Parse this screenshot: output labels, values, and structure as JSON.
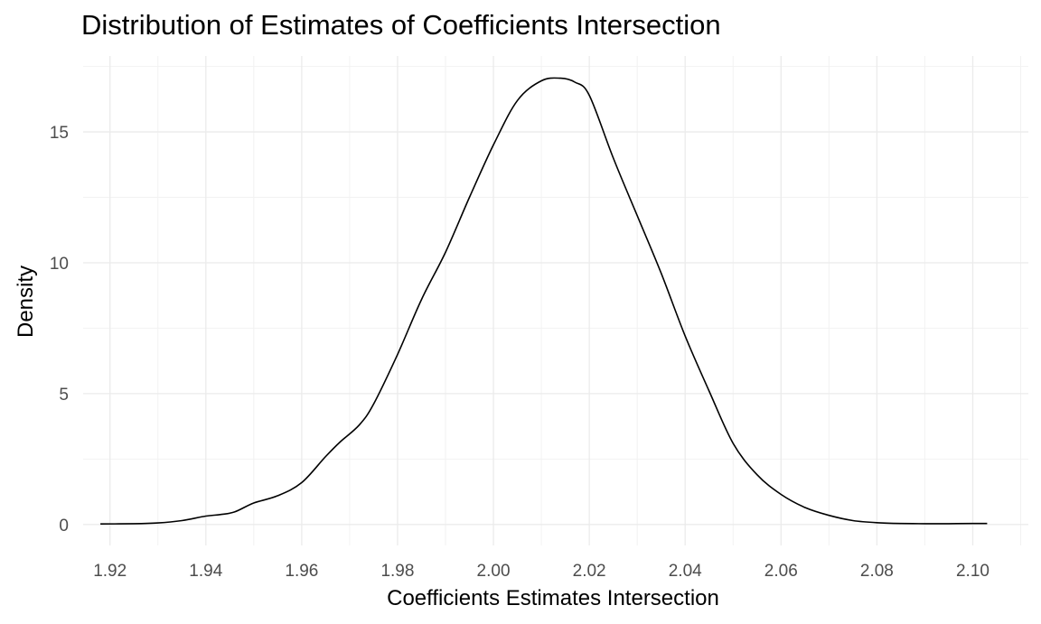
{
  "chart_data": {
    "type": "line",
    "title": "Distribution of Estimates of Coefficients Intersection",
    "xlabel": "Coefficients Estimates Intersection",
    "ylabel": "Density",
    "xlim": [
      1.9144,
      2.1116
    ],
    "ylim": [
      -0.8,
      17.9
    ],
    "x_ticks": [
      1.92,
      1.94,
      1.96,
      1.98,
      2.0,
      2.02,
      2.04,
      2.06,
      2.08,
      2.1
    ],
    "x_tick_labels": [
      "1.92",
      "1.94",
      "1.96",
      "1.98",
      "2.00",
      "2.02",
      "2.04",
      "2.06",
      "2.08",
      "2.10"
    ],
    "y_ticks": [
      0,
      5,
      10,
      15
    ],
    "y_tick_labels": [
      "0",
      "5",
      "10",
      "15"
    ],
    "grid": true,
    "series": [
      {
        "color": "#000000",
        "x": [
          1.918,
          1.925,
          1.93,
          1.935,
          1.94,
          1.943,
          1.946,
          1.95,
          1.955,
          1.96,
          1.965,
          1.968,
          1.972,
          1.975,
          1.98,
          1.985,
          1.99,
          1.995,
          2.0,
          2.005,
          2.01,
          2.014,
          2.017,
          2.02,
          2.025,
          2.03,
          2.035,
          2.04,
          2.045,
          2.05,
          2.055,
          2.06,
          2.065,
          2.07,
          2.075,
          2.08,
          2.085,
          2.09,
          2.095,
          2.1,
          2.103
        ],
        "y": [
          0.02,
          0.03,
          0.06,
          0.15,
          0.32,
          0.38,
          0.48,
          0.82,
          1.1,
          1.6,
          2.6,
          3.15,
          3.8,
          4.6,
          6.5,
          8.6,
          10.4,
          12.5,
          14.5,
          16.2,
          16.95,
          17.05,
          16.9,
          16.4,
          14.0,
          11.8,
          9.6,
          7.2,
          5.1,
          3.1,
          1.9,
          1.15,
          0.65,
          0.35,
          0.15,
          0.07,
          0.04,
          0.03,
          0.03,
          0.04,
          0.04
        ]
      }
    ]
  }
}
